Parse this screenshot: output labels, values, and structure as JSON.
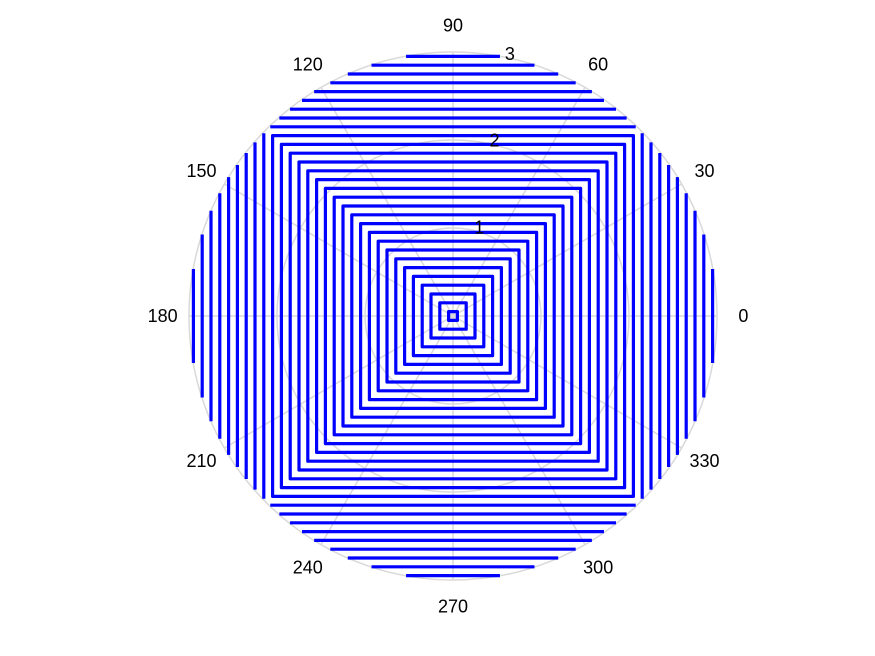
{
  "chart_data": {
    "type": "line",
    "title": "",
    "xlabel": "",
    "ylabel": "",
    "coordinate_system": "polar",
    "angle_unit": "degrees",
    "angle_ticks": [
      0,
      30,
      60,
      90,
      120,
      150,
      180,
      210,
      240,
      270,
      300,
      330
    ],
    "angle_tick_labels": [
      "0",
      "30",
      "60",
      "90",
      "120",
      "150",
      "180",
      "210",
      "240",
      "270",
      "300",
      "330"
    ],
    "radial_range": [
      0,
      3
    ],
    "radial_ticks": [
      1,
      2,
      3
    ],
    "radial_tick_labels": [
      "1",
      "2",
      "3"
    ],
    "radial_label_angle_deg": 80,
    "grid": true,
    "grid_color": "#d9d9d9",
    "line_color": "#0000ff",
    "family_description": "Curves r(theta) = c / max(|cos theta|, |sin theta|) for constant offsets c, mirrored across both axes; each curve is clipped at r = 3.",
    "offsets": [
      0.05,
      0.15,
      0.25,
      0.35,
      0.45,
      0.55,
      0.65,
      0.75,
      0.85,
      0.95,
      1.05,
      1.15,
      1.25,
      1.35,
      1.45,
      1.55,
      1.65,
      1.75,
      1.85,
      1.95,
      2.05,
      2.15,
      2.25,
      2.35,
      2.45,
      2.55,
      2.65,
      2.75,
      2.85,
      2.95
    ],
    "series": [
      {
        "values": [
          0.05,
          0.15,
          0.25,
          0.35,
          0.45,
          0.55,
          0.65,
          0.75,
          0.85,
          0.95,
          1.05,
          1.15,
          1.25,
          1.35,
          1.45,
          1.55,
          1.65,
          1.75,
          1.85,
          1.95,
          2.05,
          2.15,
          2.25,
          2.35,
          2.45,
          2.55,
          2.65,
          2.75,
          2.85,
          2.95
        ]
      }
    ]
  }
}
